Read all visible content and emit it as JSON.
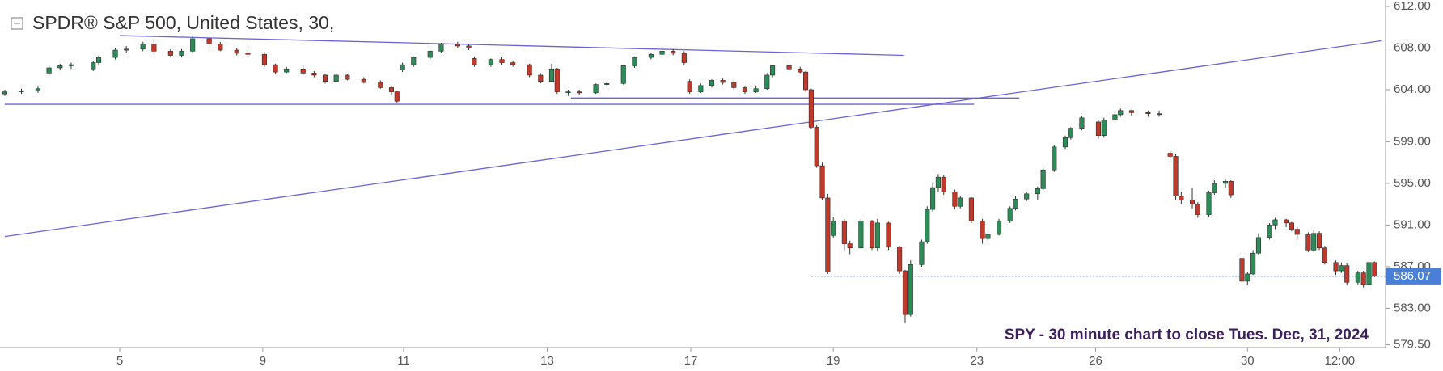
{
  "chart_data": {
    "type": "candlestick",
    "title": "SPDR® S&P 500, United States, 30,",
    "annotation": "SPY - 30 minute chart to close Tues. Dec, 31, 2024",
    "up_color": "#2e8b57",
    "down_color": "#c0392b",
    "trendline_color": "#6a62d8",
    "last_price": 586.07,
    "last_price_color": "#4a7fd6",
    "xlim": [
      0,
      250
    ],
    "ylim": [
      579.23,
      612.62
    ],
    "xticks": [
      {
        "value": 20.8,
        "label": "5"
      },
      {
        "value": 46.7,
        "label": "9"
      },
      {
        "value": 72.2,
        "label": "11"
      },
      {
        "value": 98.2,
        "label": "13"
      },
      {
        "value": 124.2,
        "label": "17"
      },
      {
        "value": 150,
        "label": "19"
      },
      {
        "value": 176,
        "label": "23"
      },
      {
        "value": 197.5,
        "label": "26"
      },
      {
        "value": 225,
        "label": "30"
      },
      {
        "value": 241.7,
        "label": "12:00"
      }
    ],
    "yticks": [
      {
        "value": 612,
        "label": "612.00"
      },
      {
        "value": 608,
        "label": "608.00"
      },
      {
        "value": 604,
        "label": "604.00"
      },
      {
        "value": 599,
        "label": "599.00"
      },
      {
        "value": 595,
        "label": "595.00"
      },
      {
        "value": 591,
        "label": "591.00"
      },
      {
        "value": 587,
        "label": "587.00"
      },
      {
        "value": 583,
        "label": "583.00"
      },
      {
        "value": 579.5,
        "label": "579.50"
      }
    ],
    "trendlines": [
      {
        "x": [
          20.8,
          162.8
        ],
        "y": [
          609.2,
          607.3
        ]
      },
      {
        "x": [
          0,
          175.5
        ],
        "y": [
          602.6,
          602.6
        ]
      },
      {
        "x": [
          102.5,
          183.7
        ],
        "y": [
          603.2,
          603.2
        ]
      },
      {
        "x": [
          0,
          249.2
        ],
        "y": [
          589.9,
          608.7
        ]
      }
    ],
    "x": [
      0,
      3,
      6,
      8,
      10,
      12,
      16,
      17,
      20,
      22,
      25,
      27,
      30,
      32,
      34,
      37,
      39,
      42,
      44,
      47,
      49,
      51,
      54,
      56,
      58,
      60,
      62,
      65,
      68,
      70,
      71,
      72,
      74,
      77,
      79,
      82,
      84,
      85,
      88,
      90,
      92,
      95,
      97,
      99,
      100,
      102,
      104,
      107,
      109,
      112,
      114,
      117,
      119,
      121,
      123,
      124,
      126,
      128,
      130,
      132,
      134,
      136,
      138,
      139,
      142,
      144,
      145,
      146,
      147,
      148,
      149,
      150,
      152,
      153,
      155,
      157,
      158,
      160,
      162,
      163,
      164,
      166,
      167,
      168,
      169,
      170,
      172,
      173,
      175,
      177,
      178,
      180,
      182,
      183,
      185,
      187,
      188,
      190,
      192,
      193,
      195,
      198,
      199,
      201,
      202,
      204,
      207,
      209,
      211,
      212,
      213,
      215,
      216,
      218,
      219,
      221,
      222,
      224,
      225,
      226,
      227,
      229,
      230,
      232,
      233,
      234,
      236,
      237,
      238,
      239,
      241,
      242,
      243,
      245,
      246,
      247,
      248
    ],
    "open": [
      603.6,
      603.8,
      603.9,
      605.6,
      606.1,
      606.3,
      606.0,
      606.6,
      607.1,
      607.8,
      607.9,
      608.4,
      607.7,
      607.3,
      607.7,
      608.9,
      608.4,
      607.8,
      607.5,
      607.4,
      606.4,
      605.7,
      606.0,
      605.6,
      605.4,
      604.8,
      605.4,
      605.0,
      604.7,
      604.2,
      603.8,
      605.9,
      606.4,
      607.1,
      607.7,
      608.4,
      608.2,
      607.0,
      606.4,
      606.9,
      606.6,
      606.4,
      605.4,
      604.8,
      606.0,
      603.8,
      603.8,
      603.7,
      604.5,
      604.6,
      606.3,
      607.1,
      607.4,
      607.7,
      607.5,
      604.8,
      603.8,
      604.4,
      604.9,
      604.7,
      604.2,
      603.8,
      604.1,
      605.4,
      606.3,
      606.0,
      605.7,
      604.0,
      600.4,
      596.7,
      593.6,
      590.0,
      591.4,
      589.2,
      588.8,
      591.4,
      588.8,
      591.2,
      588.9,
      586.6,
      582.4,
      587.2,
      589.4,
      592.5,
      594.6,
      595.6,
      594.2,
      592.8,
      593.6,
      591.4,
      589.7,
      590.1,
      591.4,
      592.6,
      593.5,
      594.0,
      594.5,
      596.3,
      598.5,
      599.4,
      600.3,
      600.9,
      599.6,
      601.1,
      601.6,
      602.0,
      601.8,
      601.7,
      597.9,
      597.6,
      593.8,
      593.4,
      593.0,
      592.0,
      594.1,
      595.0,
      595.2,
      587.8,
      585.6,
      586.3,
      588.3,
      589.8,
      591.0,
      591.5,
      591.2,
      590.6,
      590.1,
      588.6,
      590.2,
      588.8,
      587.4,
      586.6,
      587.1,
      585.5,
      586.4,
      585.3,
      587.4
    ],
    "high": [
      604.0,
      604.1,
      604.3,
      606.4,
      606.5,
      606.6,
      606.8,
      607.3,
      608.0,
      608.2,
      608.6,
      608.9,
      607.9,
      607.9,
      609.1,
      609.0,
      608.6,
      608.0,
      607.8,
      607.6,
      606.5,
      606.2,
      606.3,
      605.8,
      605.5,
      605.6,
      605.5,
      605.2,
      604.9,
      604.3,
      603.9,
      606.6,
      607.2,
      607.8,
      608.5,
      608.6,
      608.4,
      607.2,
      607.0,
      607.1,
      606.8,
      606.5,
      605.6,
      606.5,
      606.1,
      604.0,
      604.0,
      604.6,
      604.7,
      606.4,
      607.2,
      607.5,
      607.9,
      607.9,
      607.7,
      605.0,
      604.6,
      605.0,
      605.1,
      604.9,
      604.3,
      604.4,
      605.6,
      606.4,
      606.5,
      606.2,
      605.8,
      604.1,
      600.6,
      597.0,
      594.0,
      591.8,
      591.6,
      589.5,
      591.6,
      591.5,
      591.6,
      591.3,
      589.0,
      586.7,
      587.6,
      589.6,
      592.8,
      595.0,
      595.9,
      595.8,
      594.4,
      593.8,
      593.7,
      591.6,
      590.4,
      591.6,
      592.8,
      593.8,
      594.2,
      594.7,
      596.5,
      598.7,
      599.6,
      600.4,
      601.5,
      601.1,
      601.3,
      601.9,
      602.2,
      602.1,
      602.0,
      602.0,
      598.1,
      597.8,
      594.2,
      594.6,
      593.2,
      594.3,
      595.3,
      595.4,
      595.3,
      588.0,
      586.5,
      588.6,
      590.2,
      591.2,
      591.7,
      591.6,
      591.3,
      590.8,
      590.3,
      590.5,
      590.4,
      589.0,
      587.6,
      587.4,
      587.3,
      586.6,
      586.6,
      587.6,
      587.5
    ],
    "low": [
      603.4,
      603.6,
      603.7,
      605.4,
      605.9,
      606.0,
      605.8,
      606.4,
      606.9,
      607.5,
      607.7,
      607.6,
      607.2,
      607.1,
      607.6,
      608.2,
      607.7,
      607.3,
      607.2,
      606.2,
      605.5,
      605.6,
      605.4,
      605.2,
      604.6,
      604.7,
      604.9,
      604.6,
      604.1,
      603.5,
      602.7,
      605.7,
      606.2,
      606.9,
      607.5,
      608.0,
      607.8,
      606.2,
      606.2,
      606.4,
      606.2,
      605.2,
      604.6,
      604.7,
      603.6,
      603.4,
      603.5,
      603.6,
      604.3,
      604.5,
      606.1,
      606.9,
      607.2,
      607.3,
      606.4,
      603.6,
      603.7,
      604.2,
      604.5,
      604.0,
      603.6,
      603.7,
      604.0,
      605.2,
      605.8,
      605.6,
      603.8,
      600.2,
      596.5,
      593.4,
      586.3,
      589.8,
      588.6,
      588.2,
      588.7,
      588.6,
      588.5,
      588.6,
      586.3,
      581.6,
      582.2,
      587.0,
      589.2,
      592.3,
      594.2,
      593.9,
      592.5,
      592.6,
      591.2,
      589.2,
      589.4,
      590.0,
      591.2,
      592.4,
      593.3,
      593.4,
      594.3,
      596.1,
      598.3,
      599.2,
      600.1,
      599.3,
      599.4,
      600.9,
      601.4,
      601.5,
      601.4,
      601.4,
      597.4,
      593.4,
      593.0,
      592.6,
      591.7,
      591.8,
      593.9,
      594.6,
      593.6,
      585.4,
      585.2,
      586.2,
      588.1,
      589.6,
      590.6,
      590.8,
      590.4,
      589.6,
      588.4,
      588.4,
      588.6,
      587.2,
      586.2,
      586.4,
      585.2,
      585.3,
      585.0,
      585.2,
      586.0
    ],
    "close": [
      603.8,
      603.9,
      604.1,
      606.1,
      606.3,
      606.4,
      606.6,
      607.1,
      607.8,
      607.9,
      608.4,
      607.7,
      607.3,
      607.7,
      608.9,
      608.4,
      607.8,
      607.5,
      607.4,
      606.4,
      605.7,
      606.0,
      605.6,
      605.4,
      604.8,
      605.4,
      605.0,
      604.7,
      604.2,
      603.8,
      602.9,
      606.4,
      607.1,
      607.7,
      608.4,
      608.2,
      608.0,
      606.4,
      606.9,
      606.6,
      606.4,
      605.4,
      604.8,
      606.0,
      603.8,
      603.8,
      603.7,
      604.5,
      604.6,
      606.3,
      607.1,
      607.4,
      607.7,
      607.5,
      606.6,
      603.8,
      604.4,
      604.9,
      604.7,
      604.2,
      603.8,
      604.1,
      605.4,
      606.3,
      606.0,
      605.7,
      604.0,
      600.4,
      596.7,
      593.6,
      586.5,
      591.4,
      589.2,
      588.8,
      591.4,
      588.8,
      591.2,
      588.9,
      586.6,
      582.4,
      587.2,
      589.4,
      592.5,
      594.6,
      595.6,
      594.2,
      592.8,
      593.6,
      591.4,
      589.7,
      590.1,
      591.4,
      592.6,
      593.5,
      594.0,
      594.5,
      596.3,
      598.5,
      599.4,
      600.3,
      601.3,
      599.6,
      601.1,
      601.6,
      602.0,
      601.8,
      601.7,
      601.6,
      597.6,
      593.8,
      593.4,
      593.0,
      592.0,
      594.1,
      595.0,
      595.2,
      593.9,
      585.6,
      586.3,
      588.3,
      589.8,
      591.0,
      591.5,
      591.2,
      590.6,
      590.1,
      588.6,
      590.2,
      588.8,
      587.4,
      586.6,
      587.1,
      585.5,
      586.4,
      585.3,
      587.4,
      586.1
    ]
  }
}
